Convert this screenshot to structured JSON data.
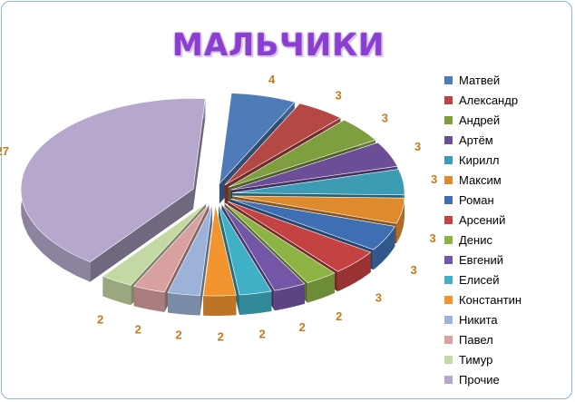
{
  "chart_data": {
    "type": "pie",
    "style": "3d-exploded",
    "title": "МАЛЬЧИКИ",
    "legend_position": "right",
    "slices": [
      {
        "label": "Матвей",
        "value": 4,
        "color": "#4f7cb8"
      },
      {
        "label": "Александр",
        "value": 3,
        "color": "#b54745"
      },
      {
        "label": "Андрей",
        "value": 3,
        "color": "#7f9e3f"
      },
      {
        "label": "Артём",
        "value": 3,
        "color": "#6b4e96"
      },
      {
        "label": "Кирилл",
        "value": 3,
        "color": "#3b9cb4"
      },
      {
        "label": "Максим",
        "value": 3,
        "color": "#e08a2e"
      },
      {
        "label": "Роман",
        "value": 3,
        "color": "#3f6fb3"
      },
      {
        "label": "Арсений",
        "value": 3,
        "color": "#c44242"
      },
      {
        "label": "Денис",
        "value": 2,
        "color": "#8db345"
      },
      {
        "label": "Евгений",
        "value": 2,
        "color": "#7357a6"
      },
      {
        "label": "Елисей",
        "value": 2,
        "color": "#3fb0c6"
      },
      {
        "label": "Константин",
        "value": 2,
        "color": "#f2952f"
      },
      {
        "label": "Никита",
        "value": 2,
        "color": "#9db2d8"
      },
      {
        "label": "Павел",
        "value": 2,
        "color": "#d9a0a0"
      },
      {
        "label": "Тимур",
        "value": 2,
        "color": "#c4d8a3"
      },
      {
        "label": "Прочие",
        "value": 27,
        "color": "#b5a8cc"
      }
    ],
    "label_color": "#c77a1a"
  }
}
